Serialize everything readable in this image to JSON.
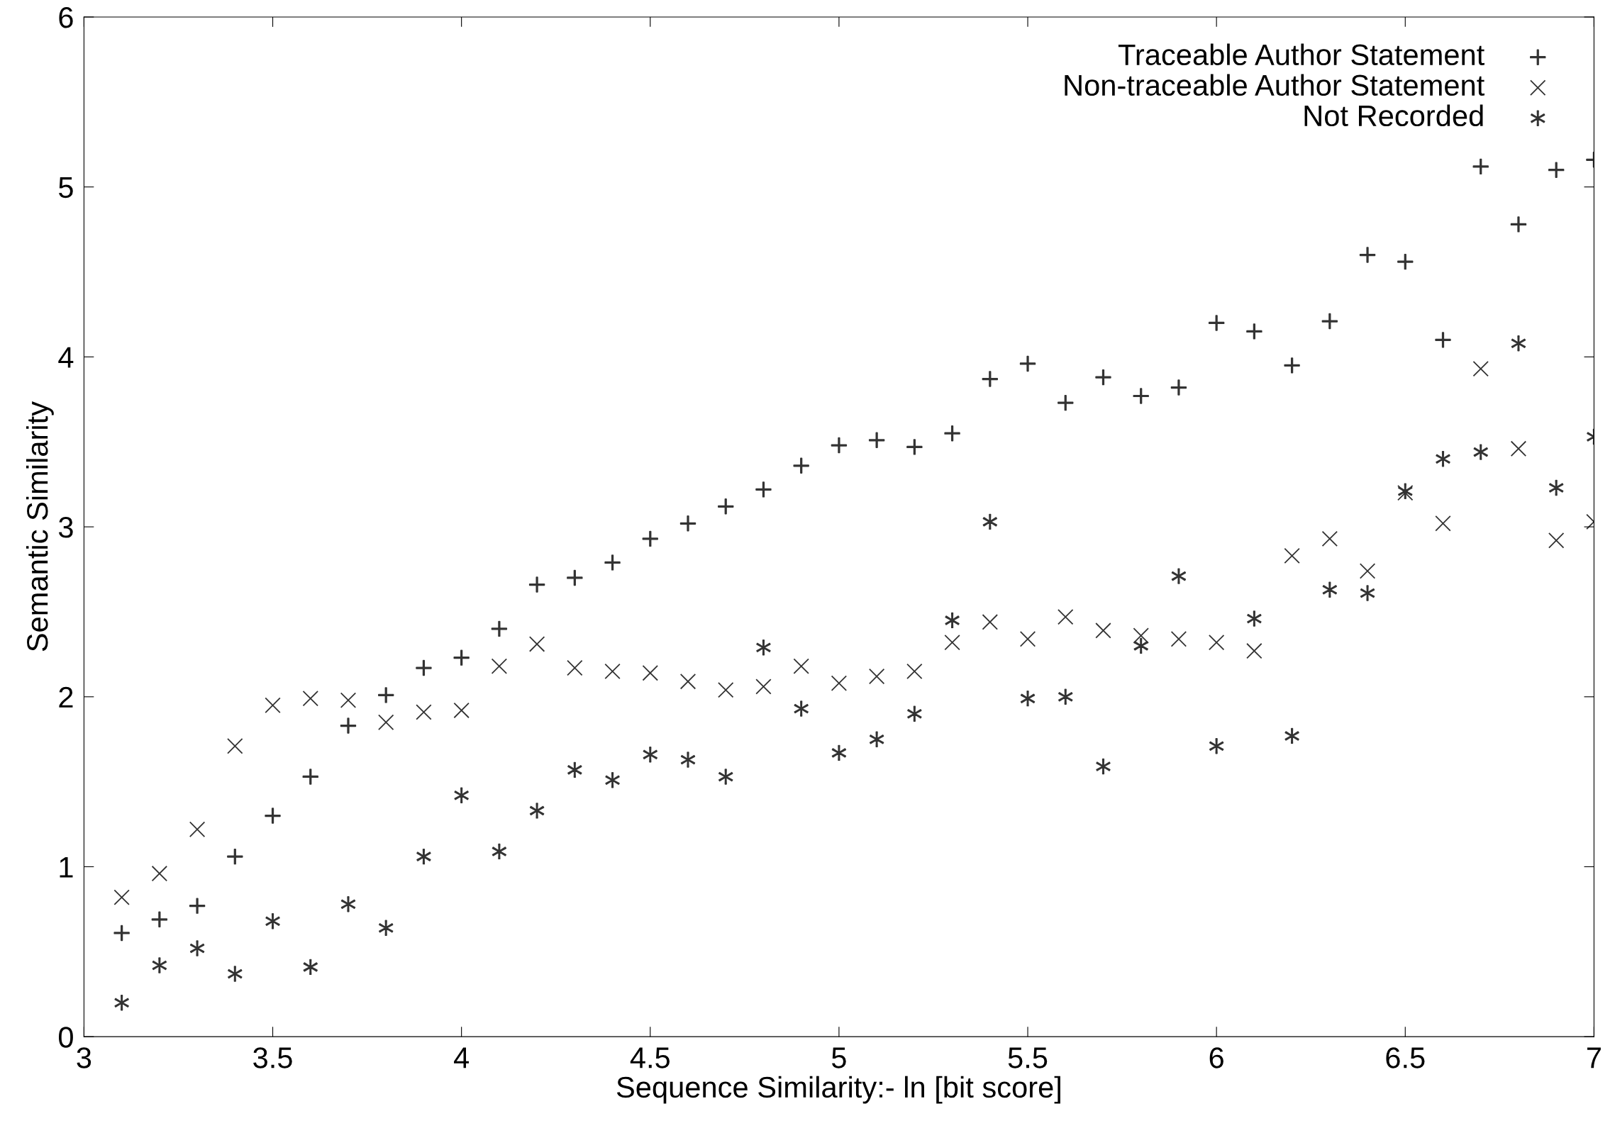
{
  "chart_data": {
    "type": "scatter",
    "xlabel": "Sequence Similarity:- ln [bit score]",
    "ylabel": "Semantic Similarity",
    "x": [
      3.1,
      3.2,
      3.3,
      3.4,
      3.5,
      3.6,
      3.7,
      3.8,
      3.9,
      4.0,
      4.1,
      4.2,
      4.3,
      4.4,
      4.5,
      4.6,
      4.7,
      4.8,
      4.9,
      5.0,
      5.1,
      5.2,
      5.3,
      5.4,
      5.5,
      5.6,
      5.7,
      5.8,
      5.9,
      6.0,
      6.1,
      6.2,
      6.3,
      6.4,
      6.5,
      6.6,
      6.7,
      6.8,
      6.9,
      7.0
    ],
    "series": [
      {
        "name": "Traceable Author Statement",
        "color": "#333333",
        "marker": "plus",
        "values": [
          0.61,
          0.69,
          0.77,
          1.06,
          1.3,
          1.53,
          1.83,
          2.01,
          2.17,
          2.23,
          2.4,
          2.66,
          2.7,
          2.79,
          2.93,
          3.02,
          3.12,
          3.22,
          3.36,
          3.48,
          3.51,
          3.47,
          3.55,
          3.87,
          3.96,
          3.73,
          3.88,
          3.77,
          3.82,
          4.2,
          4.15,
          3.95,
          4.21,
          4.6,
          4.56,
          4.1,
          5.12,
          4.78,
          5.1,
          5.16
        ]
      },
      {
        "name": "Non-traceable Author Statement",
        "color": "#333333",
        "marker": "cross",
        "values": [
          0.82,
          0.96,
          1.22,
          1.71,
          1.95,
          1.99,
          1.98,
          1.85,
          1.91,
          1.92,
          2.18,
          2.31,
          2.17,
          2.15,
          2.14,
          2.09,
          2.04,
          2.06,
          2.18,
          2.08,
          2.12,
          2.15,
          2.32,
          2.44,
          2.34,
          2.47,
          2.39,
          2.36,
          2.34,
          2.32,
          2.27,
          2.83,
          2.93,
          2.74,
          3.2,
          3.02,
          3.93,
          3.46,
          2.92,
          3.03
        ]
      },
      {
        "name": "Not Recorded",
        "color": "#333333",
        "marker": "star",
        "values": [
          0.2,
          0.42,
          0.52,
          0.37,
          0.68,
          0.41,
          0.78,
          0.64,
          1.06,
          1.42,
          1.09,
          1.33,
          1.57,
          1.51,
          1.66,
          1.63,
          1.53,
          2.29,
          1.93,
          1.67,
          1.75,
          1.9,
          2.45,
          3.03,
          1.99,
          2.0,
          1.59,
          2.3,
          2.71,
          1.71,
          2.46,
          1.77,
          2.63,
          2.61,
          3.21,
          3.4,
          3.44,
          4.08,
          3.23,
          3.53
        ]
      }
    ],
    "xlim": [
      3,
      7
    ],
    "xticks": [
      3,
      3.5,
      4,
      4.5,
      5,
      5.5,
      6,
      6.5,
      7
    ],
    "ylim": [
      0,
      6
    ],
    "yticks": [
      0,
      1,
      2,
      3,
      4,
      5,
      6
    ],
    "grid": false,
    "legend": "top right"
  }
}
